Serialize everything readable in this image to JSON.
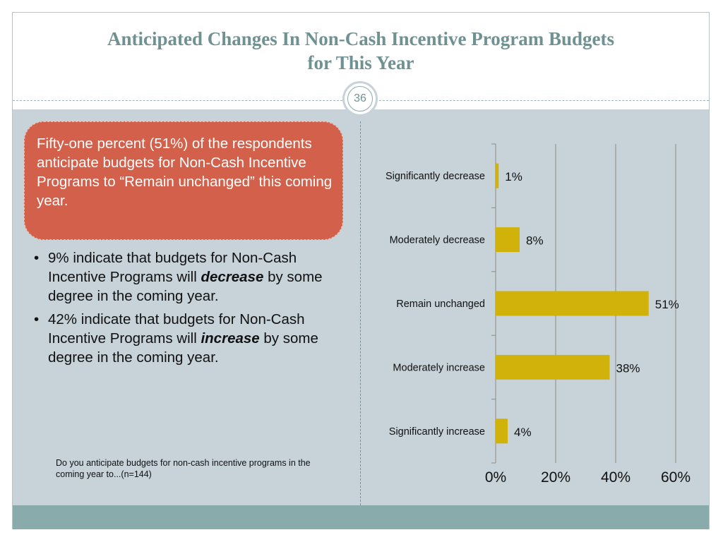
{
  "slide": {
    "title_line1": "Anticipated Changes In Non-Cash Incentive Program Budgets",
    "title_line2": "for This Year",
    "number": "36"
  },
  "callout": {
    "text": "Fifty-one percent (51%) of the respondents anticipate budgets for Non-Cash Incentive Programs to “Remain unchanged” this coming year."
  },
  "bullets": [
    {
      "bullet": "•",
      "before": "9% indicate that budgets for Non-Cash Incentive Programs will ",
      "emphasis": "decrease",
      "after": " by some degree in the coming year."
    },
    {
      "bullet": "•",
      "before": "42% indicate that budgets for Non-Cash Incentive Programs will ",
      "emphasis": "increase",
      "after": " by some degree in the coming year."
    }
  ],
  "question": "Do you anticipate budgets for non-cash incentive programs in the coming year to...(n=144)",
  "colors": {
    "bar": "#d1b20a",
    "callout": "#d3604a",
    "title": "#6f9191",
    "band": "#8aabab",
    "panel": "#c7d2d9"
  },
  "chart_data": {
    "type": "bar",
    "orientation": "horizontal",
    "categories": [
      "Significantly decrease",
      "Moderately decrease",
      "Remain unchanged",
      "Moderately increase",
      "Significantly increase"
    ],
    "values": [
      1,
      8,
      51,
      38,
      4
    ],
    "data_labels": [
      "1%",
      "8%",
      "51%",
      "38%",
      "4%"
    ],
    "xlim": [
      0,
      60
    ],
    "xticks": [
      0,
      20,
      40,
      60
    ],
    "xtick_labels": [
      "0%",
      "20%",
      "40%",
      "60%"
    ],
    "grid": "vertical",
    "legend": "none"
  }
}
